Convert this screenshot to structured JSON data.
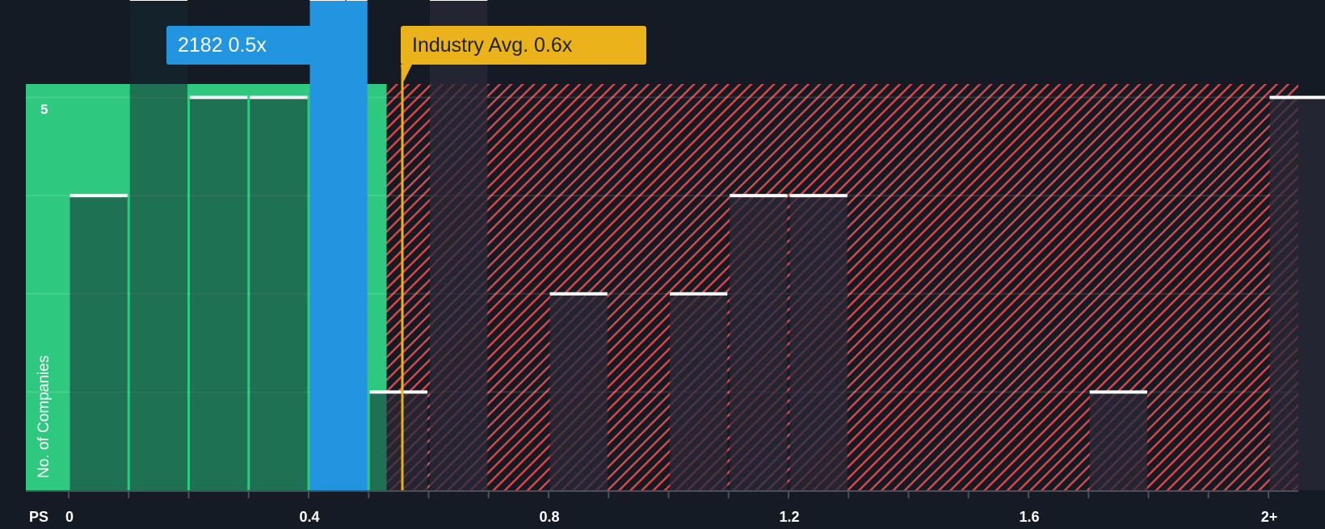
{
  "chart_data": {
    "type": "bar",
    "title": "",
    "xlabel": "PS",
    "ylabel": "No. of Companies",
    "x_tick_labels": [
      "0",
      "0.4",
      "0.8",
      "1.2",
      "1.6",
      "2+"
    ],
    "y_tick_labels": [
      "5"
    ],
    "ylim": [
      0,
      5
    ],
    "bin_width": 0.1,
    "categories": [
      "0-0.1",
      "0.1-0.2",
      "0.2-0.3",
      "0.3-0.4",
      "0.4-0.5",
      "0.5-0.6",
      "0.6-0.7",
      "0.7-0.8",
      "0.8-0.9",
      "0.9-1.0",
      "1.0-1.1",
      "1.1-1.2",
      "1.2-1.3",
      "1.3-1.4",
      "1.4-1.5",
      "1.5-1.6",
      "1.6-1.7",
      "1.7-1.8",
      "1.8-1.9",
      "1.9-2.0",
      "2+"
    ],
    "values": [
      3,
      5,
      4,
      4,
      5,
      1,
      5,
      0,
      2,
      0,
      2,
      3,
      3,
      0,
      0,
      0,
      0,
      1,
      0,
      0,
      4
    ],
    "highlighted_bin": "0.4-0.5",
    "company": {
      "label": "2182 0.5x",
      "value": 0.5
    },
    "industry_average": {
      "label": "Industry Avg. 0.6x",
      "value": 0.6
    },
    "fair_zone_end": 0.53,
    "grid": true,
    "legend": "none"
  },
  "colors": {
    "background": "#151b24",
    "undervalued_zone": "#2ec97f",
    "bar_in_zone": "#1f4a3f",
    "bar_highlight": "#2394df",
    "overvalued_hatch": "#e04848",
    "bar_overvalued": "#1f2330",
    "industry_line": "#eab21b",
    "bar_cap": "#ffffff"
  }
}
